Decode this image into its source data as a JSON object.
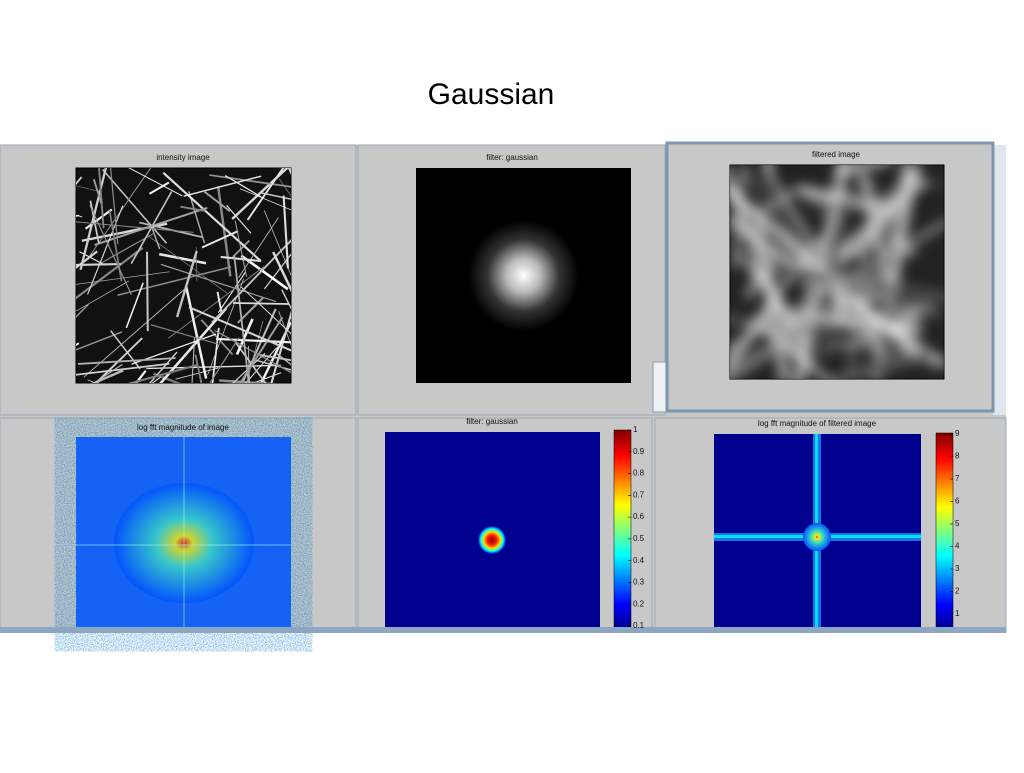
{
  "title": "Gaussian",
  "panels": [
    {
      "title": "intensity image"
    },
    {
      "title": "filter: gaussian"
    },
    {
      "title": "filtered image"
    },
    {
      "title": "log fft magnitude of image"
    },
    {
      "title": "filter: gaussian",
      "colorbar_ticks": [
        1,
        0.9,
        0.8,
        0.7,
        0.6,
        0.5,
        0.4,
        0.3,
        0.2,
        0.1
      ]
    },
    {
      "title": "log fft magnitude of filtered image",
      "colorbar_ticks": [
        9,
        8,
        7,
        6,
        5,
        4,
        3,
        2,
        1
      ]
    }
  ]
}
